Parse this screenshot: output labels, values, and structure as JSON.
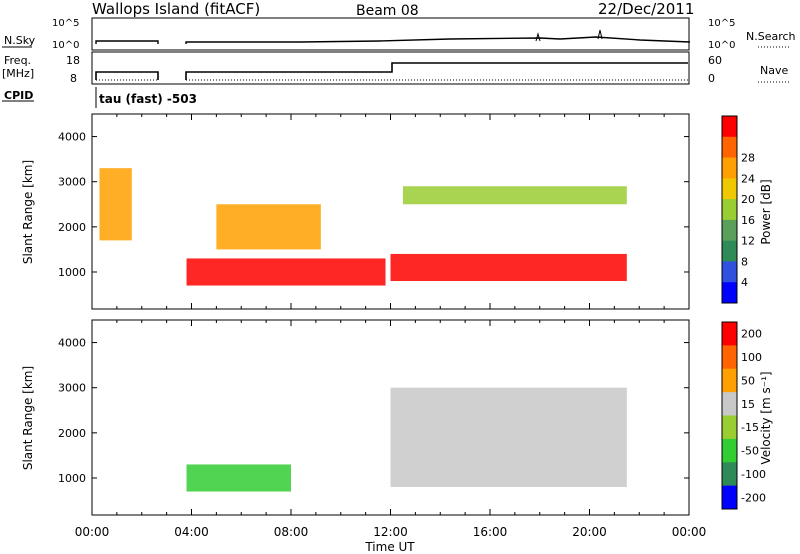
{
  "header": {
    "station": "Wallops Island (fitACF)",
    "beam": "Beam 08",
    "date": "22/Dec/2011"
  },
  "noise_panel": {
    "left_label": "N.Sky",
    "right_label": "N.Search",
    "left_ticks": [
      "10^5",
      "10^0"
    ],
    "right_ticks": [
      "10^5",
      "10^0"
    ]
  },
  "freq_panel": {
    "left_label_line1": "Freq.",
    "left_label_line2": "[MHz]",
    "right_label": "Nave",
    "left_ticks": [
      "18",
      "8"
    ],
    "right_ticks": [
      "60",
      "0"
    ]
  },
  "cpid": {
    "label": "CPID",
    "text": "tau (fast) -503"
  },
  "time_axis": {
    "ticks": [
      "00:00",
      "04:00",
      "08:00",
      "12:00",
      "16:00",
      "20:00",
      "00:00"
    ],
    "label": "Time UT"
  },
  "chart_data": [
    {
      "type": "heatmap",
      "title": "",
      "xlabel": "Time UT",
      "ylabel": "Slant Range [km]",
      "xlim": [
        0,
        24
      ],
      "ylim": [
        180,
        4500
      ],
      "y_ticks": [
        1000,
        2000,
        3000,
        4000
      ],
      "colorbar": {
        "label": "Power [dB]",
        "ticks": [
          4,
          8,
          12,
          16,
          20,
          24,
          28
        ],
        "colors": [
          "#0000ff",
          "#3050e0",
          "#2e8b57",
          "#5aa05a",
          "#9acd32",
          "#f0c800",
          "#ffa000",
          "#ff6400",
          "#ff0000"
        ]
      },
      "features": [
        {
          "name": "early evening echoes",
          "t_start": 0.3,
          "t_end": 1.6,
          "range_km": [
            1700,
            3300
          ],
          "power_db": 22
        },
        {
          "name": "post-midnight band",
          "t_start": 3.8,
          "t_end": 11.8,
          "range_km": [
            700,
            1300
          ],
          "power_db": 28
        },
        {
          "name": "ground scatter arc",
          "t_start": 5.0,
          "t_end": 9.2,
          "range_km": [
            1500,
            2500
          ],
          "power_db": 20
        },
        {
          "name": "daytime F-region band",
          "t_start": 12.0,
          "t_end": 21.5,
          "range_km": [
            800,
            1400
          ],
          "power_db": 28
        },
        {
          "name": "daytime upper band",
          "t_start": 12.5,
          "t_end": 21.5,
          "range_km": [
            2500,
            2900
          ],
          "power_db": 14
        }
      ]
    },
    {
      "type": "heatmap",
      "title": "",
      "xlabel": "Time UT",
      "ylabel": "Slant Range [km]",
      "xlim": [
        0,
        24
      ],
      "ylim": [
        180,
        4500
      ],
      "y_ticks": [
        1000,
        2000,
        3000,
        4000
      ],
      "colorbar": {
        "label": "Velocity [m s⁻¹]",
        "ticks": [
          200,
          100,
          50,
          15,
          -15,
          -50,
          -100,
          -200
        ],
        "colors": [
          "#0000ff",
          "#2e8b57",
          "#32cd32",
          "#9acd32",
          "#c8c8c8",
          "#ffa000",
          "#ff6400",
          "#ff0000"
        ]
      },
      "features": [
        {
          "name": "ground scatter (low velocity)",
          "t_start": 12.0,
          "t_end": 21.5,
          "range_km": [
            800,
            3000
          ],
          "velocity": 0
        },
        {
          "name": "positive velocity band",
          "t_start": 3.8,
          "t_end": 8.0,
          "range_km": [
            700,
            1300
          ],
          "velocity": 40
        }
      ]
    }
  ]
}
